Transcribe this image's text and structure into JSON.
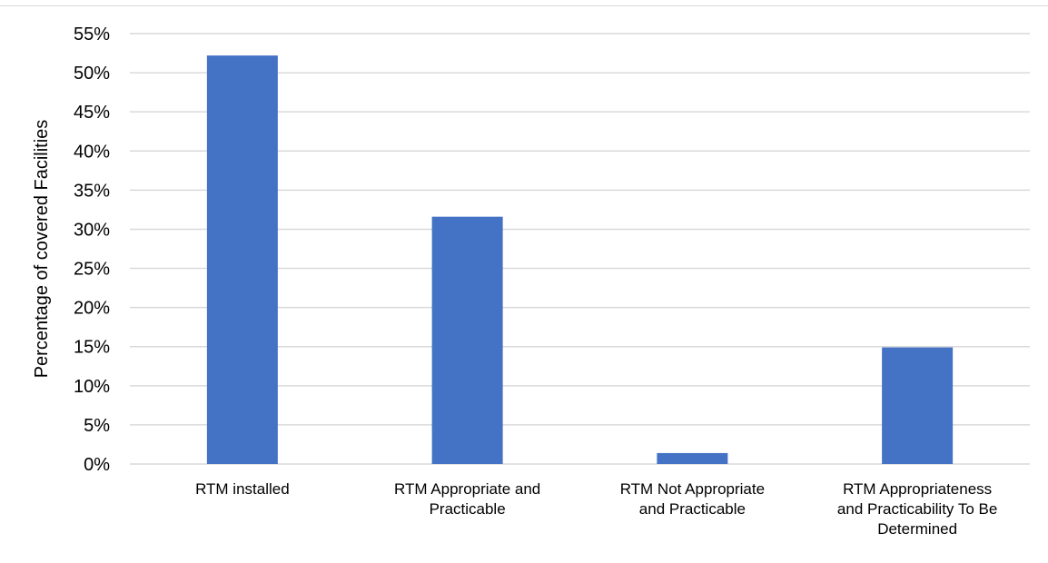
{
  "chart_data": {
    "type": "bar",
    "title": "",
    "xlabel": "",
    "ylabel": "Percentage of covered Facilities",
    "categories": [
      [
        "RTM installed"
      ],
      [
        "RTM Appropriate and",
        "Practicable"
      ],
      [
        "RTM Not Appropriate",
        "and Practicable"
      ],
      [
        "RTM Appropriateness",
        "and Practicability To Be",
        "Determined"
      ]
    ],
    "values": [
      52.2,
      31.6,
      1.4,
      14.9
    ],
    "ylim": [
      0,
      55
    ],
    "yticks": [
      0,
      5,
      10,
      15,
      20,
      25,
      30,
      35,
      40,
      45,
      50,
      55
    ],
    "ytick_suffix": "%",
    "grid": true,
    "legend": "none",
    "colors": {
      "bar": "#4472c4",
      "grid": "#d9d9d9"
    }
  }
}
